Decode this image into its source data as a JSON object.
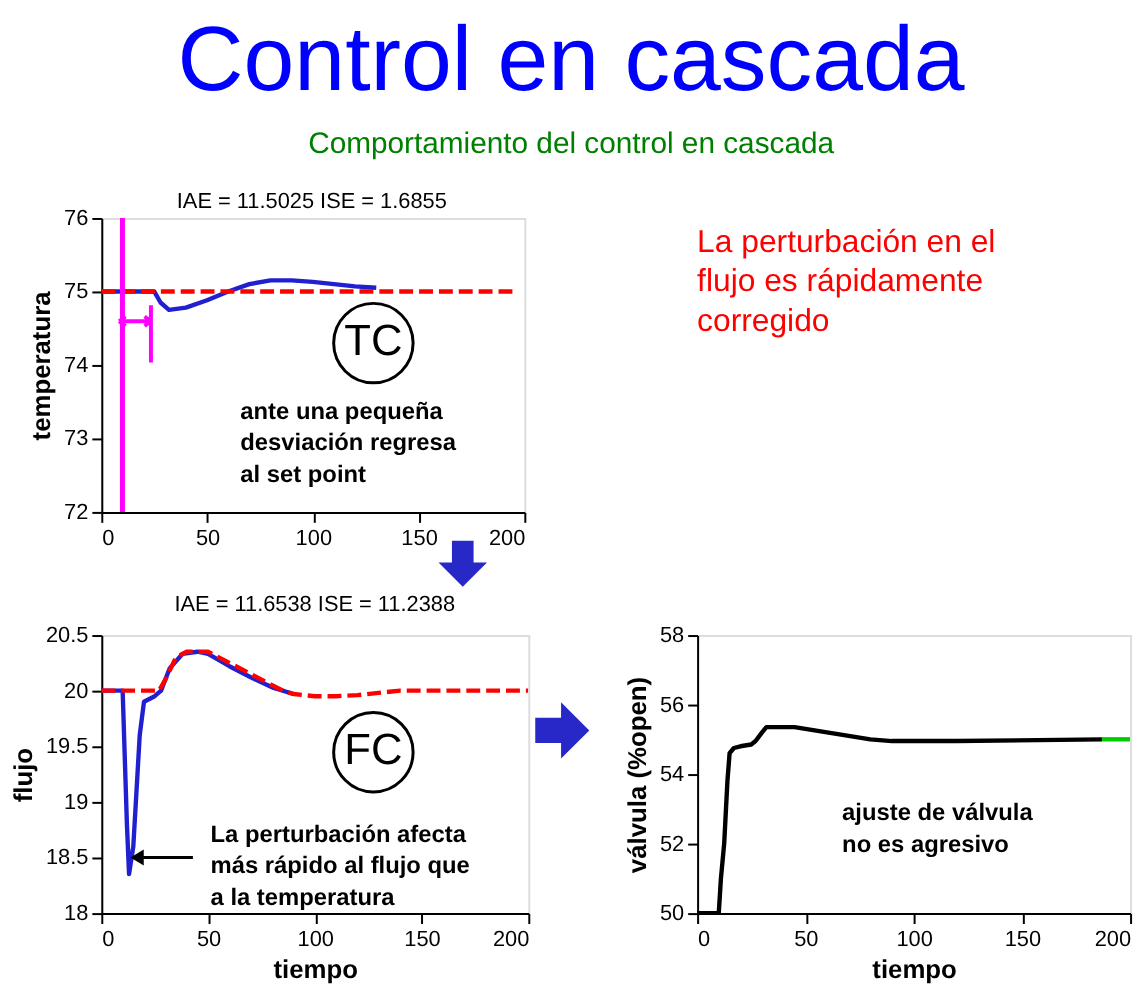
{
  "chart_data": [
    {
      "type": "line",
      "title": "Control en cascada",
      "subtitle": "Comportamiento del control en cascada",
      "ylabel": "temperatura",
      "xlim": [
        0,
        200
      ],
      "xticks": [
        0,
        50,
        100,
        150,
        200
      ],
      "ylim": [
        72,
        76
      ],
      "yticks": [
        72,
        73,
        74,
        75,
        76
      ],
      "grid": false,
      "ref_lines": [
        {
          "axis": "x",
          "value": 10,
          "color": "#ff00ff"
        }
      ],
      "series": [
        {
          "color": "#2020d0",
          "line_style": "solid",
          "x": [
            0,
            10,
            25,
            28,
            32,
            40,
            50,
            60,
            70,
            80,
            90,
            100,
            110,
            120,
            130
          ],
          "values": [
            75,
            75,
            75,
            74.85,
            74.75,
            74.78,
            74.88,
            75.0,
            75.1,
            75.15,
            75.15,
            75.13,
            75.1,
            75.07,
            75.05
          ]
        },
        {
          "color": "#ff0000",
          "line_style": "dashed",
          "x": [
            0,
            195
          ],
          "values": [
            75,
            75
          ]
        }
      ],
      "annotations": [
        "IAE = 11.5025 ISE = 1.6855",
        "TC",
        "ante una pequeña\ndesviación regresa\nal set point",
        "La perturbación en el\nflujo es rápidamente\ncorregido"
      ]
    },
    {
      "type": "line",
      "title": "IAE = 11.6538 ISE = 11.2388",
      "xlabel": "tiempo",
      "ylabel": "flujo",
      "xlim": [
        0,
        200
      ],
      "xticks": [
        0,
        50,
        100,
        150,
        200
      ],
      "ylim": [
        18,
        20.5
      ],
      "yticks": [
        18,
        18.5,
        19,
        19.5,
        20,
        20.5
      ],
      "grid": false,
      "series": [
        {
          "color": "#2020d0",
          "line_style": "solid",
          "x": [
            0,
            10,
            11,
            12,
            13,
            15,
            18,
            20,
            25,
            28,
            32,
            38,
            45,
            50,
            60,
            70,
            80,
            90
          ],
          "values": [
            20,
            20,
            19.4,
            18.8,
            18.35,
            18.6,
            19.6,
            19.9,
            19.95,
            20.0,
            20.2,
            20.33,
            20.35,
            20.33,
            20.22,
            20.12,
            20.03,
            19.97
          ]
        },
        {
          "color": "#ff0000",
          "line_style": "dashed",
          "x": [
            0,
            27,
            30,
            35,
            40,
            50,
            60,
            70,
            80,
            85,
            90,
            100,
            110,
            120,
            140,
            160,
            200
          ],
          "values": [
            20,
            20,
            20.1,
            20.3,
            20.35,
            20.35,
            20.25,
            20.15,
            20.05,
            20,
            19.97,
            19.95,
            19.95,
            19.96,
            20,
            20,
            20
          ]
        }
      ],
      "annotations": [
        "FC",
        {
          "text": "La perturbación afecta\nmás rápido al flujo que\na la temperatura",
          "x": 15,
          "y": 18.5
        }
      ]
    },
    {
      "type": "line",
      "xlabel": "tiempo",
      "ylabel": "válvula (%open)",
      "xlim": [
        0,
        200
      ],
      "xticks": [
        0,
        50,
        100,
        150,
        200
      ],
      "ylim": [
        50,
        58
      ],
      "yticks": [
        50,
        52,
        54,
        56,
        58
      ],
      "grid": false,
      "series": [
        {
          "color": "#000000",
          "line_style": "solid",
          "x": [
            0,
            10,
            11,
            12.5,
            14,
            15,
            17,
            20,
            25,
            27,
            30,
            32,
            45,
            60,
            70,
            80,
            90,
            120,
            187
          ],
          "values": [
            50,
            50,
            51,
            52,
            53.8,
            54.6,
            54.75,
            54.8,
            54.85,
            54.95,
            55.2,
            55.35,
            55.35,
            55.2,
            55.1,
            55.0,
            54.95,
            54.95,
            55
          ]
        },
        {
          "color": "#00cc00",
          "line_style": "solid",
          "x": [
            187,
            200
          ],
          "values": [
            55,
            55
          ]
        }
      ],
      "annotations": [
        "ajuste de válvula\nno es agresivo"
      ]
    }
  ]
}
